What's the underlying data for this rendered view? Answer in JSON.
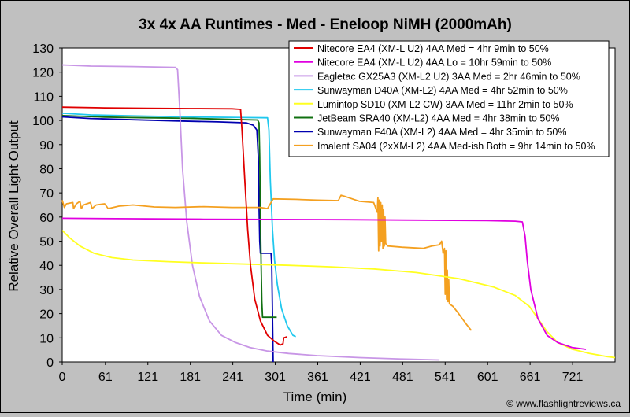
{
  "chart_data": {
    "type": "line",
    "title": "3x 4x AA Runtimes - Med - Eneloop NiMH (2000mAh)",
    "xlabel": "Time (min)",
    "ylabel": "Relative Overall Light Output",
    "xlim": [
      0,
      781
    ],
    "ylim": [
      0,
      130
    ],
    "xticks": [
      0,
      61,
      121,
      181,
      241,
      301,
      361,
      421,
      481,
      541,
      601,
      661,
      721
    ],
    "yticks": [
      0,
      10,
      20,
      30,
      40,
      50,
      60,
      70,
      80,
      90,
      100,
      110,
      120,
      130
    ],
    "grid": false,
    "legend_position": "top-right",
    "plot_background": "#ffffff",
    "chart_background": "#c0c0c0",
    "credit": "© www.flashlightreviews.ca",
    "series": [
      {
        "name": "Nitecore EA4 (XM-L U2) 4AA Med = 4hr 9min to 50%",
        "color": "#e00000",
        "points": [
          [
            0,
            105.5
          ],
          [
            60,
            105.2
          ],
          [
            120,
            105
          ],
          [
            180,
            104.9
          ],
          [
            240,
            104.8
          ],
          [
            252,
            104.6
          ],
          [
            254,
            96
          ],
          [
            258,
            75
          ],
          [
            262,
            55
          ],
          [
            266,
            40
          ],
          [
            272,
            26
          ],
          [
            280,
            17
          ],
          [
            290,
            11
          ],
          [
            300,
            8.5
          ],
          [
            308,
            7
          ],
          [
            312,
            7.5
          ],
          [
            313,
            10
          ],
          [
            318,
            10.5
          ]
        ]
      },
      {
        "name": "Nitecore EA4 (XM-L U2) 4AA Lo = 10hr 59min to 50%",
        "color": "#e000e0",
        "points": [
          [
            0,
            59.5
          ],
          [
            100,
            59.3
          ],
          [
            200,
            59.1
          ],
          [
            300,
            59
          ],
          [
            400,
            58.9
          ],
          [
            500,
            58.7
          ],
          [
            600,
            58.5
          ],
          [
            640,
            58.3
          ],
          [
            650,
            58
          ],
          [
            654,
            52
          ],
          [
            657,
            42
          ],
          [
            662,
            30
          ],
          [
            672,
            18
          ],
          [
            685,
            11
          ],
          [
            700,
            8
          ],
          [
            720,
            6
          ],
          [
            740,
            5.2
          ]
        ]
      },
      {
        "name": "Eagletac GX25A3 (XM-L2 U2) 3AA Med = 2hr 46min to 50%",
        "color": "#c896e6",
        "points": [
          [
            0,
            123
          ],
          [
            40,
            122.5
          ],
          [
            100,
            122.3
          ],
          [
            160,
            122
          ],
          [
            163,
            121
          ],
          [
            166,
            105
          ],
          [
            170,
            80
          ],
          [
            176,
            58
          ],
          [
            184,
            40
          ],
          [
            194,
            27
          ],
          [
            208,
            17
          ],
          [
            225,
            11
          ],
          [
            245,
            8
          ],
          [
            265,
            6
          ],
          [
            290,
            4.5
          ],
          [
            320,
            3.5
          ],
          [
            360,
            2.6
          ],
          [
            420,
            1.8
          ],
          [
            480,
            1.2
          ],
          [
            533,
            0.8
          ]
        ]
      },
      {
        "name": "Sunwayman D40A (XM-L2) 4AA Med = 4hr 52min to 50%",
        "color": "#20c8ee",
        "points": [
          [
            0,
            103
          ],
          [
            40,
            102.3
          ],
          [
            120,
            101.8
          ],
          [
            200,
            101.4
          ],
          [
            260,
            101.2
          ],
          [
            290,
            101.1
          ],
          [
            292,
            96
          ],
          [
            294,
            75
          ],
          [
            297,
            55
          ],
          [
            300,
            42
          ],
          [
            304,
            32
          ],
          [
            310,
            22
          ],
          [
            318,
            15
          ],
          [
            326,
            11
          ],
          [
            330,
            10.5
          ]
        ]
      },
      {
        "name": "Lumintop SD10 (XM-L2 CW) 3AA Med = 11hr 2min to 50%",
        "color": "#ffff20",
        "points": [
          [
            0,
            54.5
          ],
          [
            10,
            51.5
          ],
          [
            25,
            48
          ],
          [
            45,
            45
          ],
          [
            70,
            43.2
          ],
          [
            100,
            42.2
          ],
          [
            150,
            41.5
          ],
          [
            200,
            41
          ],
          [
            260,
            40.5
          ],
          [
            320,
            40
          ],
          [
            380,
            39.4
          ],
          [
            440,
            38.5
          ],
          [
            500,
            37
          ],
          [
            560,
            34.5
          ],
          [
            610,
            31
          ],
          [
            640,
            27.5
          ],
          [
            660,
            23
          ],
          [
            672,
            18
          ],
          [
            685,
            12.5
          ],
          [
            700,
            8
          ],
          [
            720,
            5.3
          ],
          [
            745,
            3.5
          ],
          [
            770,
            2.2
          ],
          [
            781,
            1.8
          ]
        ]
      },
      {
        "name": "JetBeam SRA40 (XM-L2) 4AA Med = 4hr 38min to 50%",
        "color": "#107010",
        "points": [
          [
            0,
            102
          ],
          [
            60,
            101.4
          ],
          [
            120,
            101.1
          ],
          [
            180,
            100.9
          ],
          [
            240,
            100.4
          ],
          [
            276,
            100.2
          ],
          [
            278,
            99
          ],
          [
            279,
            85
          ],
          [
            280,
            60
          ],
          [
            281,
            40
          ],
          [
            282,
            25
          ],
          [
            283,
            18.5
          ],
          [
            300,
            18.5
          ],
          [
            303,
            18.5
          ]
        ]
      },
      {
        "name": "Sunwayman F40A (XM-L2) 4AA Med = 4hr 35min to 50%",
        "color": "#0000b0",
        "points": [
          [
            0,
            101.5
          ],
          [
            40,
            100.8
          ],
          [
            100,
            100.3
          ],
          [
            160,
            99.8
          ],
          [
            220,
            99.4
          ],
          [
            260,
            99
          ],
          [
            270,
            98
          ],
          [
            275,
            96
          ],
          [
            277,
            85
          ],
          [
            278,
            65
          ],
          [
            279,
            50
          ],
          [
            280,
            45
          ],
          [
            283,
            45
          ],
          [
            295,
            45
          ],
          [
            296,
            40
          ],
          [
            297,
            20
          ],
          [
            298,
            0
          ]
        ]
      },
      {
        "name": "Imalent SA04 (2xXM-L2) 4AA Med-ish Both = 9hr 14min to 50%",
        "color": "#f4a020",
        "points": [
          [
            0,
            67
          ],
          [
            3,
            64
          ],
          [
            6,
            65.5
          ],
          [
            15,
            66
          ],
          [
            16,
            63.5
          ],
          [
            20,
            65.5
          ],
          [
            25,
            66.5
          ],
          [
            27,
            63.5
          ],
          [
            30,
            65
          ],
          [
            40,
            66
          ],
          [
            42,
            63.5
          ],
          [
            48,
            65
          ],
          [
            60,
            65.5
          ],
          [
            65,
            63.5
          ],
          [
            80,
            64.5
          ],
          [
            100,
            65
          ],
          [
            130,
            64.2
          ],
          [
            160,
            64
          ],
          [
            200,
            64.3
          ],
          [
            240,
            64
          ],
          [
            280,
            64
          ],
          [
            290,
            63.5
          ],
          [
            298,
            67.5
          ],
          [
            330,
            67.3
          ],
          [
            360,
            67
          ],
          [
            390,
            66.8
          ],
          [
            394,
            69
          ],
          [
            400,
            68.5
          ],
          [
            420,
            66.5
          ],
          [
            440,
            66
          ],
          [
            445,
            62
          ],
          [
            446,
            68
          ],
          [
            447,
            46
          ],
          [
            448,
            67
          ],
          [
            449,
            48
          ],
          [
            450,
            66
          ],
          [
            451,
            50
          ],
          [
            452,
            65
          ],
          [
            453,
            47
          ],
          [
            454,
            63
          ],
          [
            455,
            48
          ],
          [
            456,
            60
          ],
          [
            457,
            49
          ],
          [
            460,
            48
          ],
          [
            480,
            47.5
          ],
          [
            510,
            47
          ],
          [
            522,
            48
          ],
          [
            533,
            48.5
          ],
          [
            536,
            50
          ],
          [
            538,
            45
          ],
          [
            540,
            47
          ],
          [
            541,
            28
          ],
          [
            542,
            46
          ],
          [
            543,
            26
          ],
          [
            544,
            38
          ],
          [
            545,
            25
          ],
          [
            546,
            34
          ],
          [
            547,
            24
          ],
          [
            552,
            23
          ],
          [
            560,
            20
          ],
          [
            570,
            16
          ],
          [
            578,
            13
          ]
        ]
      }
    ]
  }
}
